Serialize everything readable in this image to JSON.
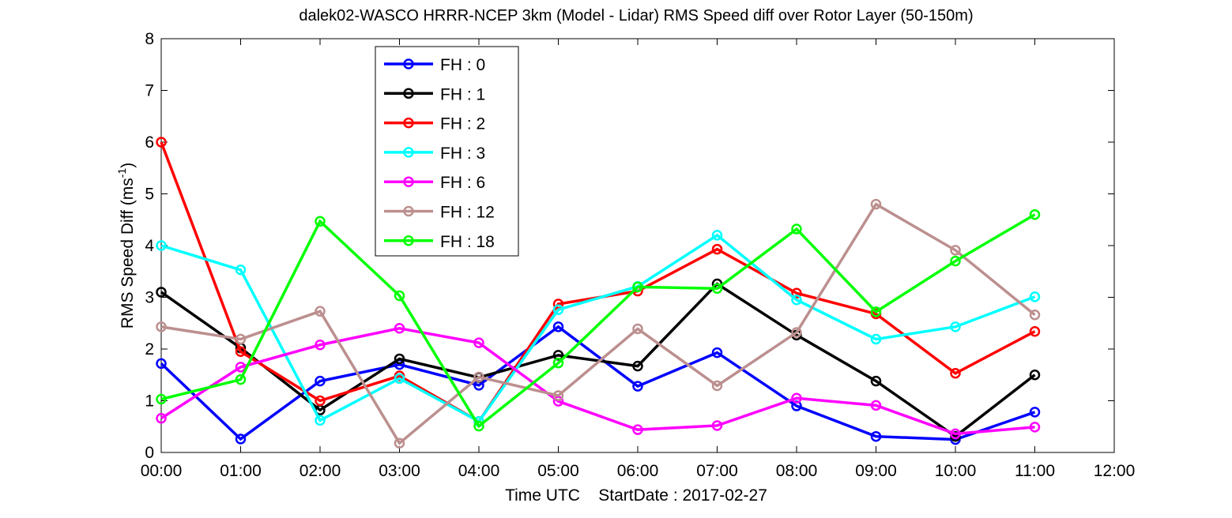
{
  "chart_data": {
    "type": "line",
    "title": "dalek02-WASCO HRRR-NCEP 3km (Model - Lidar) RMS Speed diff over Rotor Layer (50-150m)",
    "ylabel_main": "RMS Speed Diff (ms",
    "ylabel_sup": "-1",
    "ylabel_close": ")",
    "xlabel": "Time UTC    StartDate : 2017-02-27",
    "x_ticks": [
      "00:00",
      "01:00",
      "02:00",
      "03:00",
      "04:00",
      "05:00",
      "06:00",
      "07:00",
      "08:00",
      "09:00",
      "10:00",
      "11:00",
      "12:00"
    ],
    "y_ticks": [
      "0",
      "1",
      "2",
      "3",
      "4",
      "5",
      "6",
      "7",
      "8"
    ],
    "xlim": [
      0,
      12
    ],
    "ylim": [
      0,
      8
    ],
    "x": [
      0,
      1,
      2,
      3,
      4,
      5,
      6,
      7,
      8,
      9,
      10,
      11
    ],
    "legend_position": "top-left",
    "series": [
      {
        "name": "FH : 0",
        "color": "#0000ff",
        "values": [
          1.72,
          0.26,
          1.38,
          1.7,
          1.3,
          2.43,
          1.28,
          1.93,
          0.9,
          0.31,
          0.25,
          0.78
        ]
      },
      {
        "name": "FH : 1",
        "color": "#000000",
        "values": [
          3.1,
          2.02,
          0.82,
          1.81,
          1.45,
          1.88,
          1.67,
          3.26,
          2.27,
          1.38,
          0.31,
          1.5
        ]
      },
      {
        "name": "FH : 2",
        "color": "#ff0000",
        "values": [
          6.0,
          1.95,
          1.0,
          1.48,
          0.6,
          2.87,
          3.12,
          3.93,
          3.08,
          2.68,
          1.53,
          2.34
        ]
      },
      {
        "name": "FH : 3",
        "color": "#00ffff",
        "values": [
          4.0,
          3.53,
          0.62,
          1.43,
          0.6,
          2.76,
          3.21,
          4.2,
          2.95,
          2.19,
          2.43,
          3.01
        ]
      },
      {
        "name": "FH : 6",
        "color": "#ff00ff",
        "values": [
          0.66,
          1.65,
          2.08,
          2.4,
          2.12,
          0.99,
          0.44,
          0.52,
          1.05,
          0.91,
          0.36,
          0.49
        ]
      },
      {
        "name": "FH : 12",
        "color": "#bc8f8f",
        "values": [
          2.43,
          2.19,
          2.73,
          0.18,
          1.46,
          1.1,
          2.39,
          1.29,
          2.32,
          4.8,
          3.91,
          2.66
        ]
      },
      {
        "name": "FH : 18",
        "color": "#00ff00",
        "values": [
          1.03,
          1.41,
          4.47,
          3.03,
          0.51,
          1.73,
          3.2,
          3.17,
          4.32,
          2.72,
          3.7,
          4.6
        ]
      }
    ]
  }
}
